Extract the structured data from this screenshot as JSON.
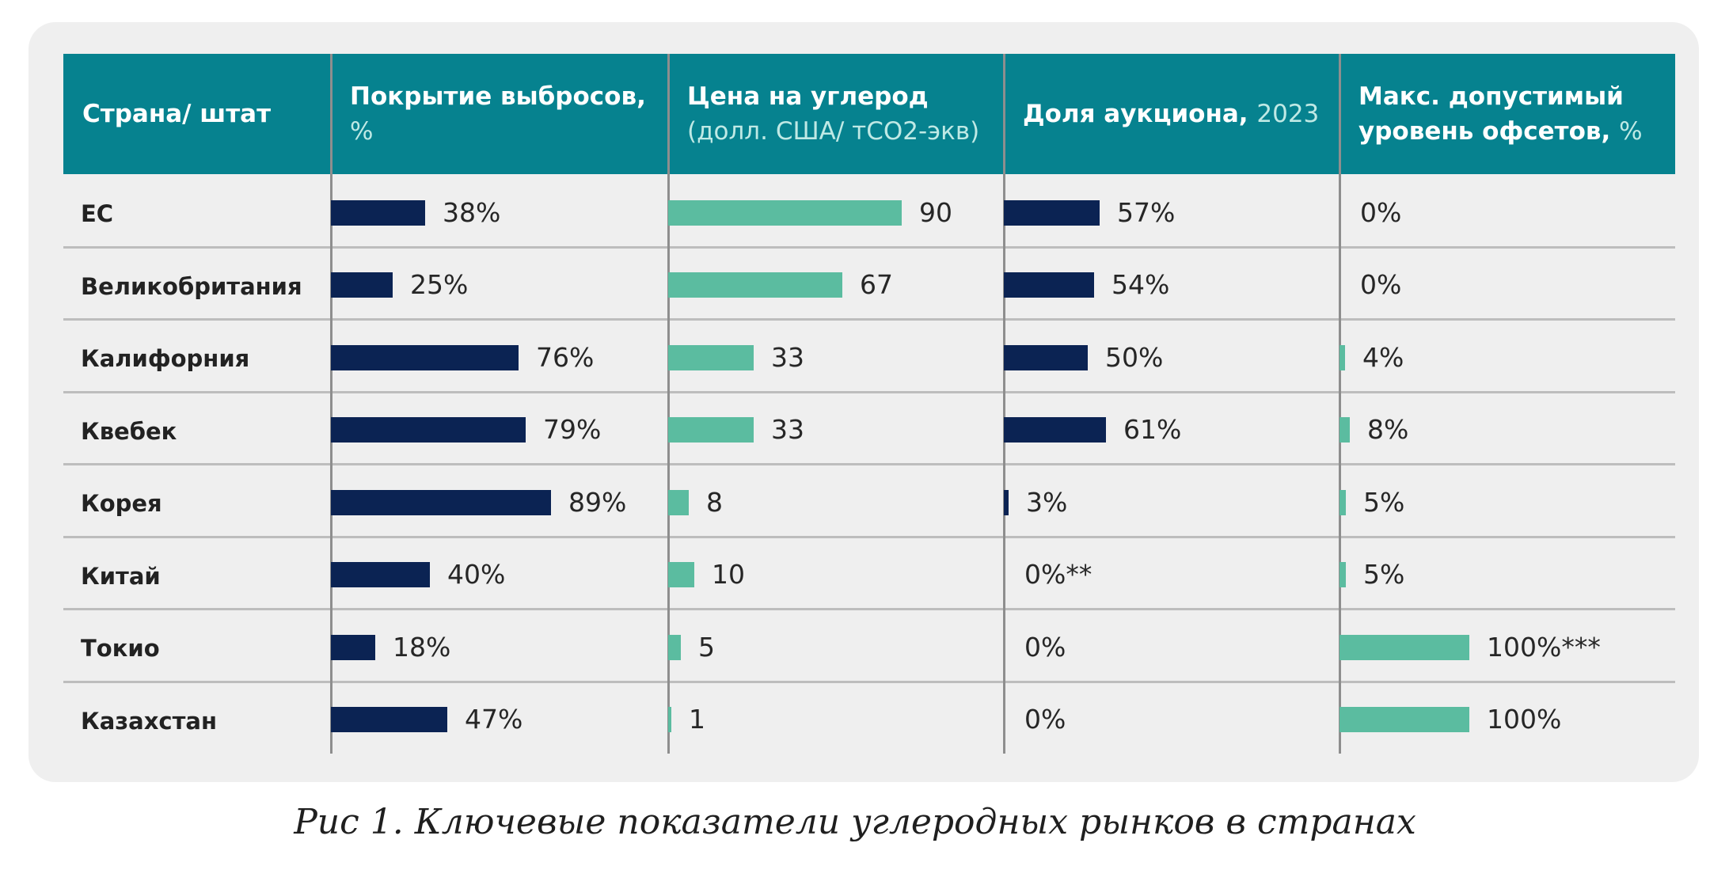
{
  "chart_data": {
    "type": "table",
    "caption": "Рис 1. Ключевые показатели углеродных рынков в странах",
    "columns": [
      {
        "key": "country",
        "bold": "Страна/ штат",
        "light": ""
      },
      {
        "key": "coverage",
        "bold": "Покрытие выбросов,",
        "light": "%"
      },
      {
        "key": "price",
        "bold": "Цена на углерод",
        "light": "(долл. США/ тСО2-экв)"
      },
      {
        "key": "auction",
        "bold": "Доля аукциона,",
        "light": "2023"
      },
      {
        "key": "offsets",
        "bold": "Макс. допустимый уровень офсетов,",
        "light": "%"
      }
    ],
    "rows": [
      {
        "country": "ЕС",
        "coverage": 38,
        "coverage_label": "38%",
        "price": 90,
        "price_label": "90",
        "auction": 57,
        "auction_label": "57%",
        "offsets": 0,
        "offsets_label": "0%"
      },
      {
        "country": "Великобритания",
        "coverage": 25,
        "coverage_label": "25%",
        "price": 67,
        "price_label": "67",
        "auction": 54,
        "auction_label": "54%",
        "offsets": 0,
        "offsets_label": "0%"
      },
      {
        "country": "Калифорния",
        "coverage": 76,
        "coverage_label": "76%",
        "price": 33,
        "price_label": "33",
        "auction": 50,
        "auction_label": "50%",
        "offsets": 4,
        "offsets_label": "4%"
      },
      {
        "country": "Квебек",
        "coverage": 79,
        "coverage_label": "79%",
        "price": 33,
        "price_label": "33",
        "auction": 61,
        "auction_label": "61%",
        "offsets": 8,
        "offsets_label": "8%"
      },
      {
        "country": "Корея",
        "coverage": 89,
        "coverage_label": "89%",
        "price": 8,
        "price_label": "8",
        "auction": 3,
        "auction_label": "3%",
        "offsets": 5,
        "offsets_label": "5%"
      },
      {
        "country": "Китай",
        "coverage": 40,
        "coverage_label": "40%",
        "price": 10,
        "price_label": "10",
        "auction": 0,
        "auction_label": "0%**",
        "offsets": 5,
        "offsets_label": "5%"
      },
      {
        "country": "Токио",
        "coverage": 18,
        "coverage_label": "18%",
        "price": 5,
        "price_label": "5",
        "auction": 0,
        "auction_label": "0%",
        "offsets": 100,
        "offsets_label": "100%***"
      },
      {
        "country": "Казахстан",
        "coverage": 47,
        "coverage_label": "47%",
        "price": 1,
        "price_label": "1",
        "auction": 0,
        "auction_label": "0%",
        "offsets": 100,
        "offsets_label": "100%"
      }
    ],
    "colors": {
      "header": "#06828f",
      "header_text": "#ffffff",
      "header_light_text": "#bfe9e5",
      "navy_bar": "#0b2353",
      "teal_bar": "#5bbca0",
      "card_background": "#efefef"
    }
  }
}
